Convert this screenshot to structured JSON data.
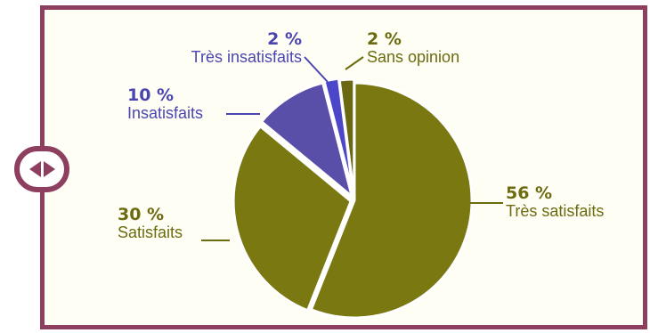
{
  "chart_data": {
    "type": "pie",
    "slices": [
      {
        "label": "Très satisfaits",
        "value": 56,
        "value_label": "56 %",
        "color": "#7a7811"
      },
      {
        "label": "Satisfaits",
        "value": 30,
        "value_label": "30 %",
        "color": "#7a7811"
      },
      {
        "label": "Insatisfaits",
        "value": 10,
        "value_label": "10 %",
        "color": "#5a4fa8"
      },
      {
        "label": "Très insatisfaits",
        "value": 2,
        "value_label": "2 %",
        "color": "#4b47c8"
      },
      {
        "label": "Sans opinion",
        "value": 2,
        "value_label": "2 %",
        "color": "#6a6812"
      }
    ],
    "legend": "none",
    "labels": "outside with leader lines"
  },
  "colors": {
    "frame": "#8e3f5f",
    "background": "#fffef4",
    "olive_text": "#6d6b10",
    "blue_text": "#4a45b0"
  },
  "controls": {
    "side_handle_icon": "left-right-arrows-icon"
  }
}
